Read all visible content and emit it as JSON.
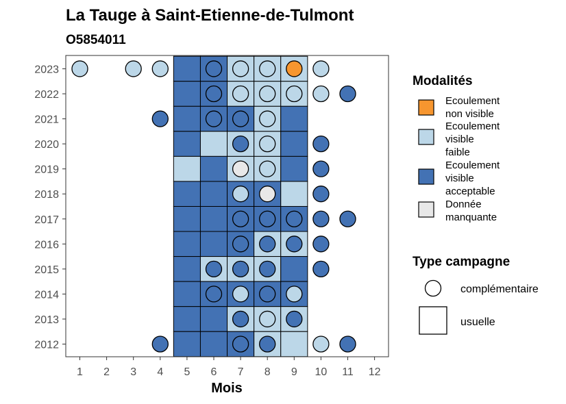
{
  "chart_data": {
    "type": "heatmap",
    "title": "La Tauge à Saint-Etienne-de-Tulmont",
    "subtitle": "O5854011",
    "xlabel": "Mois",
    "x_ticks": [
      "1",
      "2",
      "3",
      "4",
      "5",
      "6",
      "7",
      "8",
      "9",
      "10",
      "11",
      "12"
    ],
    "y_ticks": [
      "2012",
      "2013",
      "2014",
      "2015",
      "2016",
      "2017",
      "2018",
      "2019",
      "2020",
      "2021",
      "2022",
      "2023"
    ],
    "modalities": [
      {
        "key": "nv",
        "label_lines": [
          "Ecoulement",
          "non visible"
        ],
        "color": "#f7962f"
      },
      {
        "key": "vf",
        "label_lines": [
          "Ecoulement",
          "visible",
          "faible"
        ],
        "color": "#bcd7e8"
      },
      {
        "key": "va",
        "label_lines": [
          "Ecoulement",
          "visible",
          "acceptable"
        ],
        "color": "#4372b4"
      },
      {
        "key": "nd",
        "label_lines": [
          "Donnée",
          "manquante"
        ],
        "color": "#e8e8e8"
      }
    ],
    "legend_modalites_title": "Modalités",
    "legend_campaign_title": "Type campagne",
    "campaign_types": [
      {
        "key": "complementaire",
        "label": "complémentaire",
        "shape": "circle"
      },
      {
        "key": "usuelle",
        "label": "usuelle",
        "shape": "square"
      }
    ],
    "usual_tiles": [
      {
        "year": 2023,
        "month": 5,
        "mod": "va"
      },
      {
        "year": 2023,
        "month": 6,
        "mod": "va"
      },
      {
        "year": 2023,
        "month": 7,
        "mod": "vf"
      },
      {
        "year": 2023,
        "month": 8,
        "mod": "vf"
      },
      {
        "year": 2023,
        "month": 9,
        "mod": "vf"
      },
      {
        "year": 2022,
        "month": 5,
        "mod": "va"
      },
      {
        "year": 2022,
        "month": 6,
        "mod": "va"
      },
      {
        "year": 2022,
        "month": 7,
        "mod": "vf"
      },
      {
        "year": 2022,
        "month": 8,
        "mod": "vf"
      },
      {
        "year": 2022,
        "month": 9,
        "mod": "vf"
      },
      {
        "year": 2021,
        "month": 5,
        "mod": "va"
      },
      {
        "year": 2021,
        "month": 6,
        "mod": "va"
      },
      {
        "year": 2021,
        "month": 7,
        "mod": "va"
      },
      {
        "year": 2021,
        "month": 8,
        "mod": "vf"
      },
      {
        "year": 2021,
        "month": 9,
        "mod": "va"
      },
      {
        "year": 2020,
        "month": 5,
        "mod": "va"
      },
      {
        "year": 2020,
        "month": 6,
        "mod": "vf"
      },
      {
        "year": 2020,
        "month": 7,
        "mod": "vf"
      },
      {
        "year": 2020,
        "month": 8,
        "mod": "vf"
      },
      {
        "year": 2020,
        "month": 9,
        "mod": "va"
      },
      {
        "year": 2019,
        "month": 5,
        "mod": "vf"
      },
      {
        "year": 2019,
        "month": 6,
        "mod": "va"
      },
      {
        "year": 2019,
        "month": 7,
        "mod": "vf"
      },
      {
        "year": 2019,
        "month": 8,
        "mod": "vf"
      },
      {
        "year": 2019,
        "month": 9,
        "mod": "va"
      },
      {
        "year": 2018,
        "month": 5,
        "mod": "va"
      },
      {
        "year": 2018,
        "month": 6,
        "mod": "va"
      },
      {
        "year": 2018,
        "month": 7,
        "mod": "va"
      },
      {
        "year": 2018,
        "month": 8,
        "mod": "va"
      },
      {
        "year": 2018,
        "month": 9,
        "mod": "vf"
      },
      {
        "year": 2017,
        "month": 5,
        "mod": "va"
      },
      {
        "year": 2017,
        "month": 6,
        "mod": "va"
      },
      {
        "year": 2017,
        "month": 7,
        "mod": "va"
      },
      {
        "year": 2017,
        "month": 8,
        "mod": "va"
      },
      {
        "year": 2017,
        "month": 9,
        "mod": "va"
      },
      {
        "year": 2016,
        "month": 5,
        "mod": "va"
      },
      {
        "year": 2016,
        "month": 6,
        "mod": "va"
      },
      {
        "year": 2016,
        "month": 7,
        "mod": "va"
      },
      {
        "year": 2016,
        "month": 8,
        "mod": "vf"
      },
      {
        "year": 2016,
        "month": 9,
        "mod": "vf"
      },
      {
        "year": 2015,
        "month": 5,
        "mod": "va"
      },
      {
        "year": 2015,
        "month": 6,
        "mod": "vf"
      },
      {
        "year": 2015,
        "month": 7,
        "mod": "vf"
      },
      {
        "year": 2015,
        "month": 8,
        "mod": "vf"
      },
      {
        "year": 2015,
        "month": 9,
        "mod": "va"
      },
      {
        "year": 2014,
        "month": 5,
        "mod": "va"
      },
      {
        "year": 2014,
        "month": 6,
        "mod": "va"
      },
      {
        "year": 2014,
        "month": 7,
        "mod": "va"
      },
      {
        "year": 2014,
        "month": 8,
        "mod": "va"
      },
      {
        "year": 2014,
        "month": 9,
        "mod": "va"
      },
      {
        "year": 2013,
        "month": 5,
        "mod": "va"
      },
      {
        "year": 2013,
        "month": 6,
        "mod": "va"
      },
      {
        "year": 2013,
        "month": 7,
        "mod": "vf"
      },
      {
        "year": 2013,
        "month": 8,
        "mod": "vf"
      },
      {
        "year": 2013,
        "month": 9,
        "mod": "vf"
      },
      {
        "year": 2012,
        "month": 5,
        "mod": "va"
      },
      {
        "year": 2012,
        "month": 6,
        "mod": "va"
      },
      {
        "year": 2012,
        "month": 7,
        "mod": "va"
      },
      {
        "year": 2012,
        "month": 8,
        "mod": "vf"
      },
      {
        "year": 2012,
        "month": 9,
        "mod": "vf"
      }
    ],
    "complementary_points": [
      {
        "year": 2023,
        "month": 1,
        "mod": "vf"
      },
      {
        "year": 2023,
        "month": 3,
        "mod": "vf"
      },
      {
        "year": 2023,
        "month": 4,
        "mod": "vf"
      },
      {
        "year": 2023,
        "month": 6,
        "mod": "va"
      },
      {
        "year": 2023,
        "month": 7,
        "mod": "vf"
      },
      {
        "year": 2023,
        "month": 8,
        "mod": "vf"
      },
      {
        "year": 2023,
        "month": 9,
        "mod": "nv"
      },
      {
        "year": 2023,
        "month": 10,
        "mod": "vf"
      },
      {
        "year": 2022,
        "month": 6,
        "mod": "va"
      },
      {
        "year": 2022,
        "month": 7,
        "mod": "vf"
      },
      {
        "year": 2022,
        "month": 8,
        "mod": "vf"
      },
      {
        "year": 2022,
        "month": 9,
        "mod": "vf"
      },
      {
        "year": 2022,
        "month": 10,
        "mod": "vf"
      },
      {
        "year": 2022,
        "month": 11,
        "mod": "va"
      },
      {
        "year": 2021,
        "month": 4,
        "mod": "va"
      },
      {
        "year": 2021,
        "month": 6,
        "mod": "va"
      },
      {
        "year": 2021,
        "month": 7,
        "mod": "va"
      },
      {
        "year": 2021,
        "month": 8,
        "mod": "vf"
      },
      {
        "year": 2020,
        "month": 7,
        "mod": "va"
      },
      {
        "year": 2020,
        "month": 8,
        "mod": "vf"
      },
      {
        "year": 2020,
        "month": 10,
        "mod": "va"
      },
      {
        "year": 2019,
        "month": 7,
        "mod": "nd"
      },
      {
        "year": 2019,
        "month": 8,
        "mod": "vf"
      },
      {
        "year": 2019,
        "month": 10,
        "mod": "va"
      },
      {
        "year": 2018,
        "month": 7,
        "mod": "vf"
      },
      {
        "year": 2018,
        "month": 8,
        "mod": "nd"
      },
      {
        "year": 2018,
        "month": 10,
        "mod": "va"
      },
      {
        "year": 2017,
        "month": 7,
        "mod": "va"
      },
      {
        "year": 2017,
        "month": 8,
        "mod": "va"
      },
      {
        "year": 2017,
        "month": 9,
        "mod": "va"
      },
      {
        "year": 2017,
        "month": 10,
        "mod": "va"
      },
      {
        "year": 2017,
        "month": 11,
        "mod": "va"
      },
      {
        "year": 2016,
        "month": 7,
        "mod": "va"
      },
      {
        "year": 2016,
        "month": 8,
        "mod": "va"
      },
      {
        "year": 2016,
        "month": 9,
        "mod": "va"
      },
      {
        "year": 2016,
        "month": 10,
        "mod": "va"
      },
      {
        "year": 2015,
        "month": 6,
        "mod": "va"
      },
      {
        "year": 2015,
        "month": 7,
        "mod": "va"
      },
      {
        "year": 2015,
        "month": 8,
        "mod": "va"
      },
      {
        "year": 2015,
        "month": 10,
        "mod": "va"
      },
      {
        "year": 2014,
        "month": 6,
        "mod": "va"
      },
      {
        "year": 2014,
        "month": 7,
        "mod": "vf"
      },
      {
        "year": 2014,
        "month": 8,
        "mod": "va"
      },
      {
        "year": 2014,
        "month": 9,
        "mod": "vf"
      },
      {
        "year": 2013,
        "month": 7,
        "mod": "va"
      },
      {
        "year": 2013,
        "month": 8,
        "mod": "vf"
      },
      {
        "year": 2013,
        "month": 9,
        "mod": "va"
      },
      {
        "year": 2012,
        "month": 4,
        "mod": "va"
      },
      {
        "year": 2012,
        "month": 7,
        "mod": "va"
      },
      {
        "year": 2012,
        "month": 8,
        "mod": "va"
      },
      {
        "year": 2012,
        "month": 10,
        "mod": "vf"
      },
      {
        "year": 2012,
        "month": 11,
        "mod": "va"
      }
    ]
  }
}
